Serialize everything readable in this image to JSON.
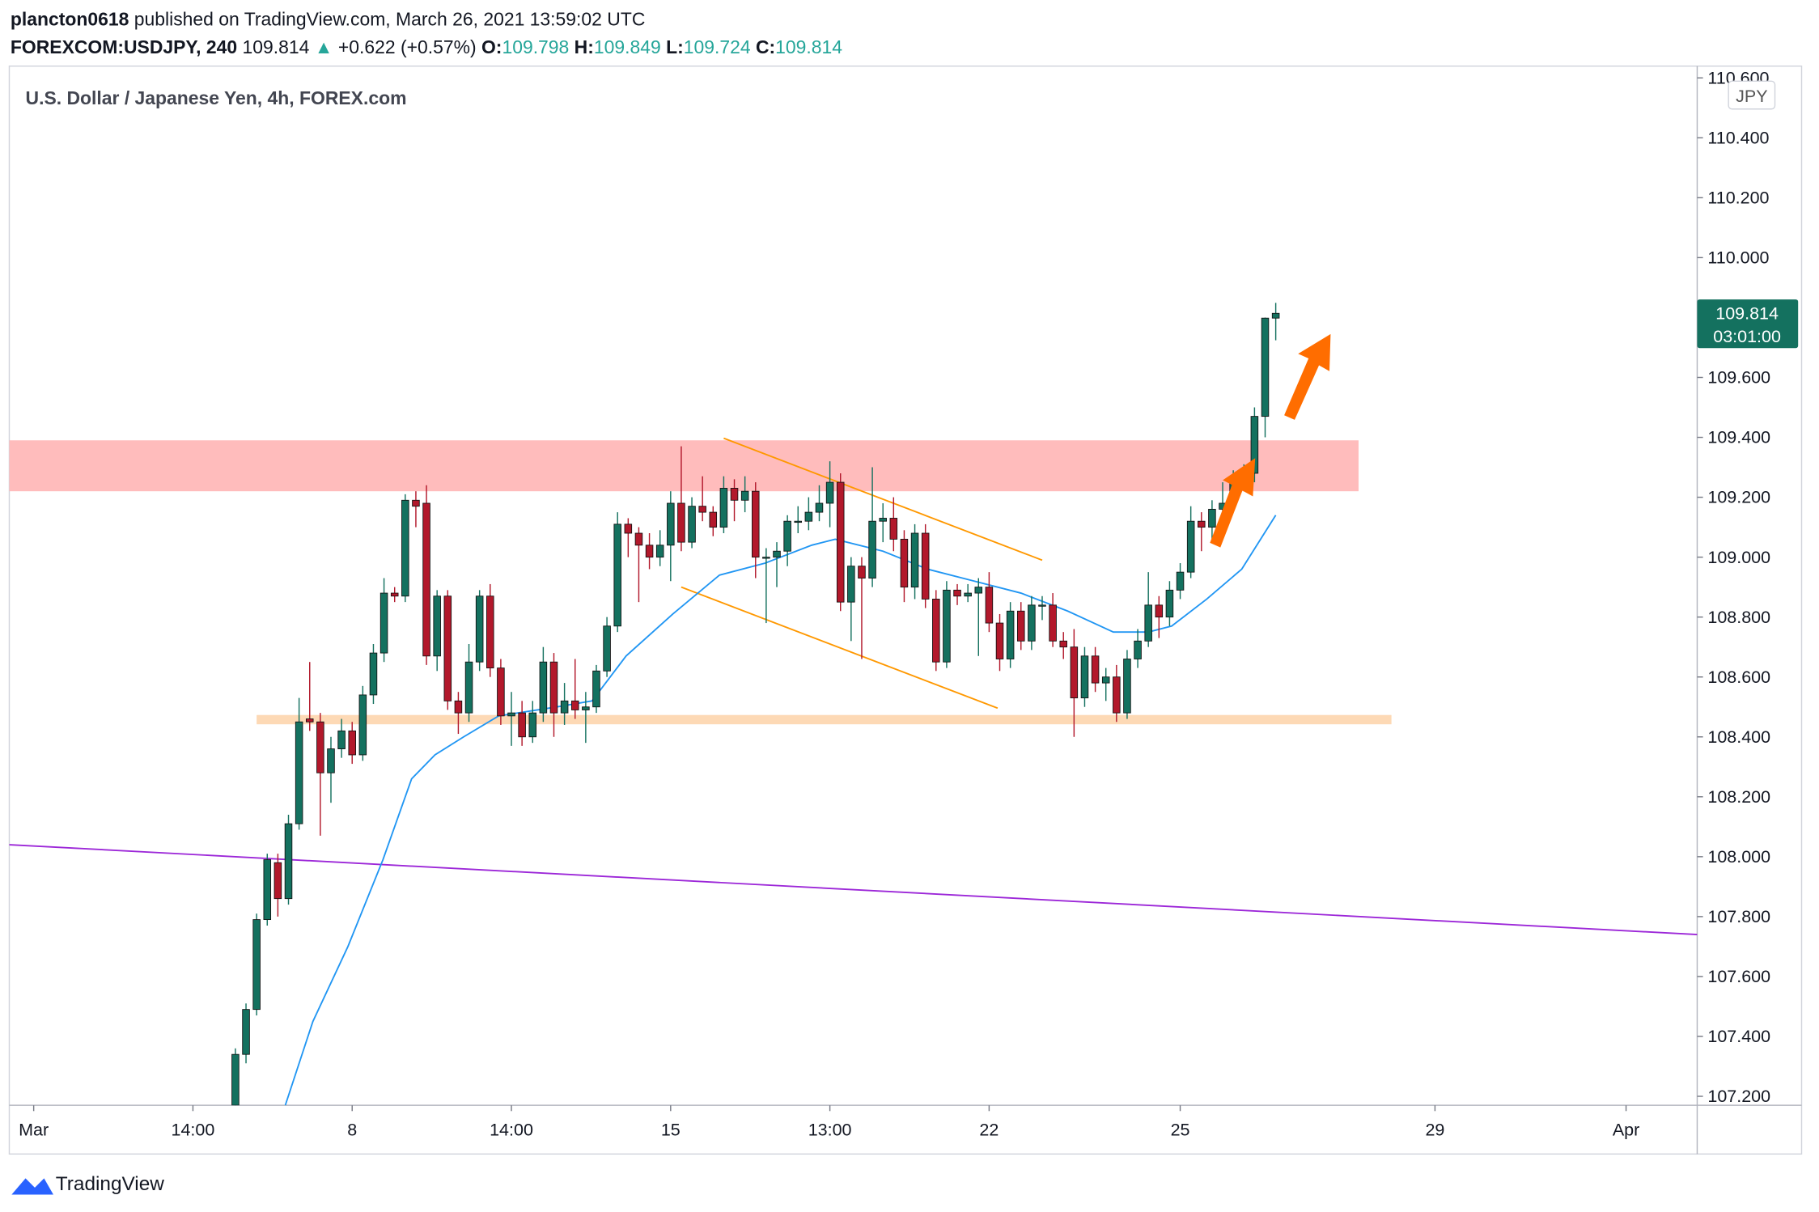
{
  "header": {
    "author": "plancton0618",
    "published": "published on TradingView.com, March 26, 2021 13:59:02 UTC",
    "symbol": "FOREXCOM:USDJPY, 240",
    "price": "109.814",
    "arrow": "▲",
    "change": "+0.622 (+0.57%)",
    "o_label": "O:",
    "o": "109.798",
    "h_label": "H:",
    "h": "109.849",
    "l_label": "L:",
    "l": "109.724",
    "c_label": "C:",
    "c": "109.814"
  },
  "footer": {
    "brand": "TradingView"
  },
  "chart_data": {
    "type": "candlestick",
    "title": "U.S. Dollar / Japanese Yen, 4h, FOREX.com",
    "currency": "JPY",
    "last_price": 109.814,
    "countdown": "03:01:00",
    "up_color": "#14715f",
    "down_color": "#b2182b",
    "xlim": [
      -21.3,
      137.7
    ],
    "ylim": [
      107.17,
      110.62
    ],
    "xticks": [
      {
        "value": -19,
        "label": "Mar"
      },
      {
        "value": -4,
        "label": "14:00"
      },
      {
        "value": 11,
        "label": "8"
      },
      {
        "value": 26,
        "label": "14:00"
      },
      {
        "value": 41,
        "label": "15"
      },
      {
        "value": 56,
        "label": "13:00"
      },
      {
        "value": 71,
        "label": "22"
      },
      {
        "value": 89,
        "label": "25"
      },
      {
        "value": 113,
        "label": "29"
      },
      {
        "value": 131,
        "label": "Apr"
      }
    ],
    "yticks": [
      {
        "value": 107.2,
        "label": "107.200"
      },
      {
        "value": 107.4,
        "label": "107.400"
      },
      {
        "value": 107.6,
        "label": "107.600"
      },
      {
        "value": 107.8,
        "label": "107.800"
      },
      {
        "value": 108.0,
        "label": "108.000"
      },
      {
        "value": 108.2,
        "label": "108.200"
      },
      {
        "value": 108.4,
        "label": "108.400"
      },
      {
        "value": 108.6,
        "label": "108.600"
      },
      {
        "value": 108.8,
        "label": "108.800"
      },
      {
        "value": 109.0,
        "label": "109.000"
      },
      {
        "value": 109.2,
        "label": "109.200"
      },
      {
        "value": 109.4,
        "label": "109.400"
      },
      {
        "value": 109.6,
        "label": "109.600"
      },
      {
        "value": 109.8,
        "label": "109.800"
      },
      {
        "value": 110.0,
        "label": "110.000"
      },
      {
        "value": 110.2,
        "label": "110.200"
      },
      {
        "value": 110.4,
        "label": "110.400"
      },
      {
        "value": 110.6,
        "label": "110.600"
      }
    ],
    "open": [
      107.17,
      107.34,
      107.49,
      107.79,
      107.98,
      107.86,
      108.11,
      108.46,
      108.45,
      108.28,
      108.36,
      108.42,
      108.34,
      108.54,
      108.68,
      108.88,
      108.87,
      109.19,
      109.18,
      108.67,
      108.87,
      108.52,
      108.48,
      108.65,
      108.87,
      108.63,
      108.47,
      108.48,
      108.4,
      108.48,
      108.65,
      108.48,
      108.52,
      108.49,
      108.5,
      108.62,
      108.77,
      109.11,
      109.08,
      109.04,
      109.0,
      109.04,
      109.18,
      109.05,
      109.17,
      109.15,
      109.1,
      109.23,
      109.19,
      109.22,
      109.0,
      109.0,
      109.02,
      109.12,
      109.12,
      109.15,
      109.18,
      109.25,
      108.85,
      108.97,
      108.93,
      109.12,
      109.13,
      109.06,
      108.9,
      109.08,
      108.86,
      108.65,
      108.89,
      108.87,
      108.88,
      108.9,
      108.78,
      108.66,
      108.82,
      108.72,
      108.84,
      108.84,
      108.72,
      108.7,
      108.53,
      108.67,
      108.58,
      108.6,
      108.48,
      108.66,
      108.72,
      108.84,
      108.8,
      108.89,
      108.95,
      109.12,
      109.1,
      109.16,
      109.18,
      109.25,
      109.28,
      109.47,
      109.798
    ],
    "high": [
      107.36,
      107.51,
      107.81,
      108.01,
      108.01,
      108.14,
      108.53,
      108.65,
      108.48,
      108.4,
      108.46,
      108.45,
      108.57,
      108.71,
      108.93,
      108.9,
      109.21,
      109.22,
      109.24,
      108.89,
      108.89,
      108.55,
      108.71,
      108.89,
      108.91,
      108.66,
      108.55,
      108.52,
      108.52,
      108.7,
      108.68,
      108.58,
      108.66,
      108.55,
      108.64,
      108.8,
      109.15,
      109.13,
      109.1,
      109.08,
      109.09,
      109.22,
      109.37,
      109.2,
      109.27,
      109.17,
      109.27,
      109.26,
      109.27,
      109.25,
      109.03,
      109.05,
      109.14,
      109.17,
      109.2,
      109.24,
      109.32,
      109.28,
      109.0,
      109.0,
      109.3,
      109.18,
      109.2,
      109.09,
      109.11,
      109.11,
      108.89,
      108.92,
      108.91,
      108.91,
      108.93,
      108.95,
      108.81,
      108.85,
      108.85,
      108.87,
      108.87,
      108.88,
      108.75,
      108.76,
      108.7,
      108.7,
      108.63,
      108.64,
      108.69,
      108.76,
      108.95,
      108.87,
      108.92,
      108.98,
      109.17,
      109.15,
      109.19,
      109.25,
      109.29,
      109.31,
      109.5,
      109.8,
      109.849
    ],
    "low": [
      107.14,
      107.31,
      107.47,
      107.77,
      107.8,
      107.84,
      108.09,
      108.42,
      108.07,
      108.18,
      108.33,
      108.31,
      108.32,
      108.51,
      108.65,
      108.85,
      108.85,
      109.1,
      108.64,
      108.62,
      108.49,
      108.41,
      108.45,
      108.62,
      108.6,
      108.44,
      108.37,
      108.37,
      108.38,
      108.45,
      108.4,
      108.44,
      108.46,
      108.38,
      108.48,
      108.6,
      108.75,
      109.0,
      108.85,
      108.96,
      108.97,
      108.92,
      109.02,
      109.03,
      109.12,
      109.07,
      109.08,
      109.12,
      109.15,
      108.93,
      108.78,
      108.9,
      108.97,
      109.08,
      109.09,
      109.12,
      109.1,
      108.82,
      108.72,
      108.66,
      108.9,
      109.05,
      109.02,
      108.85,
      108.86,
      108.83,
      108.62,
      108.63,
      108.84,
      108.85,
      108.67,
      108.75,
      108.62,
      108.63,
      108.69,
      108.69,
      108.79,
      108.7,
      108.66,
      108.4,
      108.5,
      108.55,
      108.52,
      108.45,
      108.46,
      108.63,
      108.7,
      108.73,
      108.77,
      108.86,
      108.93,
      109.02,
      109.05,
      109.13,
      109.15,
      109.22,
      109.25,
      109.4,
      109.724
    ],
    "close": [
      107.34,
      107.49,
      107.79,
      107.99,
      107.86,
      108.11,
      108.45,
      108.45,
      108.28,
      108.36,
      108.42,
      108.34,
      108.54,
      108.68,
      108.88,
      108.87,
      109.19,
      109.17,
      108.67,
      108.87,
      108.52,
      108.48,
      108.65,
      108.87,
      108.63,
      108.47,
      108.48,
      108.4,
      108.48,
      108.65,
      108.48,
      108.52,
      108.49,
      108.5,
      108.62,
      108.77,
      109.11,
      109.08,
      109.04,
      109.0,
      109.04,
      109.18,
      109.05,
      109.17,
      109.15,
      109.1,
      109.23,
      109.19,
      109.22,
      109.0,
      109.0,
      109.02,
      109.12,
      109.12,
      109.15,
      109.18,
      109.25,
      108.85,
      108.97,
      108.93,
      109.12,
      109.13,
      109.06,
      108.9,
      109.08,
      108.86,
      108.65,
      108.89,
      108.87,
      108.88,
      108.9,
      108.78,
      108.66,
      108.82,
      108.72,
      108.84,
      108.84,
      108.72,
      108.7,
      108.53,
      108.67,
      108.58,
      108.6,
      108.48,
      108.66,
      108.72,
      108.84,
      108.8,
      108.89,
      108.95,
      109.12,
      109.1,
      109.16,
      109.18,
      109.25,
      109.28,
      109.47,
      109.798,
      109.814
    ],
    "ma": {
      "color": "#2196f3",
      "x": [
        4.7,
        7.3,
        10.6,
        13.9,
        16.6,
        18.8,
        21.5,
        24.8,
        30.3,
        33.6,
        36.8,
        41.2,
        45.6,
        49.9,
        54.3,
        56.5,
        61,
        65.2,
        69.6,
        74,
        78.4,
        82.7,
        86,
        88.2,
        91.5,
        94.8,
        98
      ],
      "values": [
        107.17,
        107.45,
        107.7,
        107.99,
        108.26,
        108.34,
        108.4,
        108.47,
        108.5,
        108.52,
        108.67,
        108.81,
        108.94,
        108.98,
        109.04,
        109.06,
        109.02,
        108.96,
        108.92,
        108.88,
        108.82,
        108.75,
        108.75,
        108.77,
        108.86,
        108.96,
        109.14
      ]
    },
    "zones": [
      {
        "xlim": [
          -21.3,
          105.8
        ],
        "ylim": [
          109.22,
          109.39
        ],
        "color": "#ffbcbc"
      },
      {
        "xlim": [
          2,
          108.9
        ],
        "ylim": [
          108.442,
          108.473
        ],
        "color": "#fdd9b5"
      }
    ],
    "lines": [
      {
        "x": [
          46,
          76
        ],
        "values": [
          109.397,
          108.99
        ],
        "color": "#ff9800"
      },
      {
        "x": [
          42,
          71.8
        ],
        "values": [
          108.9,
          108.496
        ],
        "color": "#ff9800"
      },
      {
        "x": [
          -21.3,
          137.7
        ],
        "values": [
          108.04,
          107.74
        ],
        "color": "#9c27d8"
      }
    ]
  }
}
